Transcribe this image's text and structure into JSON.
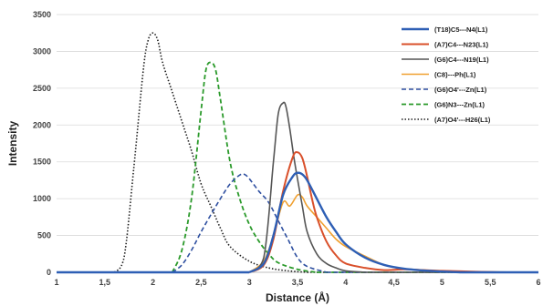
{
  "chart_data": {
    "type": "line",
    "xlabel": "Distance (Å)",
    "ylabel": "Intensity",
    "xlim": [
      1,
      6
    ],
    "ylim": [
      0,
      3500
    ],
    "x_ticks": [
      "1",
      "1,5",
      "2",
      "2,5",
      "3",
      "3,5",
      "4",
      "4,5",
      "5",
      "5,5",
      "6"
    ],
    "y_ticks": [
      "0",
      "500",
      "1000",
      "1500",
      "2000",
      "2500",
      "3000",
      "3500"
    ],
    "grid": "horizontal",
    "legend_position": "top-right",
    "series": [
      {
        "name": "(T18)C5---N4(L1)",
        "color": "#2e5fb5",
        "dash": "solid",
        "width": 2.4,
        "x": [
          3.0,
          3.15,
          3.25,
          3.35,
          3.45,
          3.5,
          3.55,
          3.6,
          3.7,
          3.8,
          3.9,
          4.0,
          4.2,
          4.4,
          4.6,
          4.8,
          5.0,
          5.2
        ],
        "y": [
          0,
          120,
          500,
          1050,
          1300,
          1350,
          1330,
          1250,
          1000,
          750,
          550,
          380,
          200,
          100,
          50,
          25,
          10,
          0
        ]
      },
      {
        "name": "(A7)C4---N23(L1)",
        "color": "#d9502b",
        "dash": "solid",
        "width": 2,
        "x": [
          3.0,
          3.15,
          3.25,
          3.35,
          3.45,
          3.5,
          3.55,
          3.6,
          3.65,
          3.7,
          3.8,
          3.9,
          4.0,
          4.2,
          4.4,
          4.6,
          4.8,
          5.0,
          5.3,
          5.6
        ],
        "y": [
          0,
          100,
          450,
          1100,
          1560,
          1630,
          1550,
          1300,
          1000,
          750,
          420,
          230,
          120,
          60,
          30,
          40,
          30,
          20,
          10,
          0
        ]
      },
      {
        "name": "(G6)C4---N19(L1)",
        "color": "#555555",
        "dash": "solid",
        "width": 1.6,
        "x": [
          3.0,
          3.15,
          3.25,
          3.3,
          3.35,
          3.38,
          3.42,
          3.47,
          3.55,
          3.6,
          3.7,
          3.8,
          3.9,
          4.0,
          4.2
        ],
        "y": [
          0,
          200,
          1500,
          2150,
          2300,
          2250,
          1950,
          1500,
          900,
          550,
          250,
          120,
          60,
          20,
          0
        ]
      },
      {
        "name": "(C8)---Ph(L1)",
        "color": "#f0a030",
        "dash": "solid",
        "width": 1.6,
        "x": [
          3.0,
          3.15,
          3.25,
          3.35,
          3.42,
          3.5,
          3.55,
          3.6,
          3.7,
          3.8,
          3.9,
          4.0,
          4.2,
          4.4,
          4.6,
          5.0,
          5.5,
          6.0
        ],
        "y": [
          0,
          150,
          500,
          950,
          900,
          1050,
          1020,
          900,
          750,
          600,
          450,
          350,
          220,
          100,
          50,
          20,
          5,
          0
        ]
      },
      {
        "name": "(G6)O4'---Zn(L1)",
        "color": "#2e4fa0",
        "dash": "dashed",
        "width": 1.6,
        "x": [
          2.2,
          2.3,
          2.4,
          2.5,
          2.6,
          2.7,
          2.8,
          2.9,
          2.95,
          3.0,
          3.1,
          3.2,
          3.3,
          3.4,
          3.5,
          3.6,
          3.8
        ],
        "y": [
          0,
          100,
          300,
          550,
          780,
          1000,
          1200,
          1320,
          1330,
          1270,
          1100,
          950,
          700,
          450,
          200,
          80,
          0
        ]
      },
      {
        "name": "(G6)N3---Zn(L1)",
        "color": "#2b9a2b",
        "dash": "dashed",
        "width": 1.8,
        "x": [
          2.2,
          2.3,
          2.4,
          2.5,
          2.55,
          2.6,
          2.65,
          2.7,
          2.8,
          2.9,
          3.0,
          3.1,
          3.2,
          3.3,
          3.5,
          3.7
        ],
        "y": [
          0,
          300,
          1000,
          2200,
          2750,
          2850,
          2750,
          2350,
          1500,
          1000,
          650,
          420,
          250,
          130,
          40,
          0
        ]
      },
      {
        "name": "(A7)O4'---H26(L1)",
        "color": "#202020",
        "dash": "dotted",
        "width": 1.6,
        "x": [
          1.6,
          1.7,
          1.8,
          1.9,
          1.95,
          2.0,
          2.05,
          2.1,
          2.2,
          2.3,
          2.4,
          2.5,
          2.6,
          2.7,
          2.8,
          3.0,
          3.2,
          3.4,
          3.6
        ],
        "y": [
          0,
          200,
          1400,
          2750,
          3150,
          3250,
          3150,
          2850,
          2450,
          2050,
          1650,
          1200,
          900,
          600,
          350,
          150,
          60,
          20,
          0
        ]
      }
    ]
  }
}
